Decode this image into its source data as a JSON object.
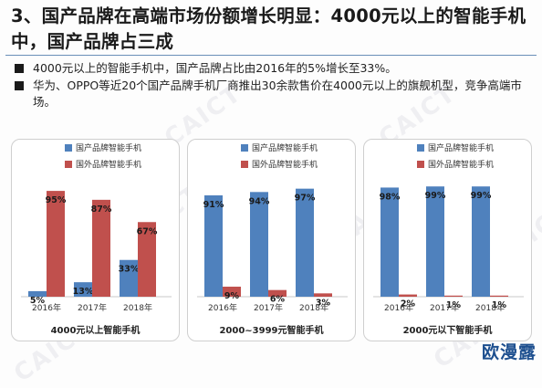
{
  "header": {
    "title": "3、国产品牌在高端市场份额增长明显：4000元以上的智能手机中，国产品牌占三成"
  },
  "bullets": [
    "4000元以上的智能手机中，国产品牌占比由2016年的5%增长至33%。",
    "华为、OPPO等近20个国产品牌手机厂商推出30余款售价在4000元以上的旗舰机型，竞争高端市场。"
  ],
  "watermark": "CAICT",
  "brand": "欧漫露",
  "colors": {
    "domestic": "#4f81bd",
    "foreign": "#c0504d"
  },
  "chart_data": [
    {
      "type": "bar",
      "title": "4000元以上智能手机",
      "categories": [
        "2016年",
        "2017年",
        "2018年"
      ],
      "ylim": [
        0,
        100
      ],
      "legend_position": "top",
      "series": [
        {
          "name": "国产品牌智能手机",
          "values": [
            5,
            13,
            33
          ]
        },
        {
          "name": "国外品牌智能手机",
          "values": [
            95,
            87,
            67
          ]
        }
      ]
    },
    {
      "type": "bar",
      "title": "2000~3999元智能手机",
      "categories": [
        "2016年",
        "2017年",
        "2018年"
      ],
      "ylim": [
        0,
        100
      ],
      "legend_position": "top",
      "series": [
        {
          "name": "国产品牌智能手机",
          "values": [
            91,
            94,
            97
          ]
        },
        {
          "name": "国外品牌智能手机",
          "values": [
            9,
            6,
            3
          ]
        }
      ]
    },
    {
      "type": "bar",
      "title": "2000元以下智能手机",
      "categories": [
        "2016年",
        "2017年",
        "2018年"
      ],
      "ylim": [
        0,
        100
      ],
      "legend_position": "top",
      "series": [
        {
          "name": "国产品牌智能手机",
          "values": [
            98,
            99,
            99
          ]
        },
        {
          "name": "国外品牌智能手机",
          "values": [
            2,
            1,
            1
          ]
        }
      ]
    }
  ]
}
